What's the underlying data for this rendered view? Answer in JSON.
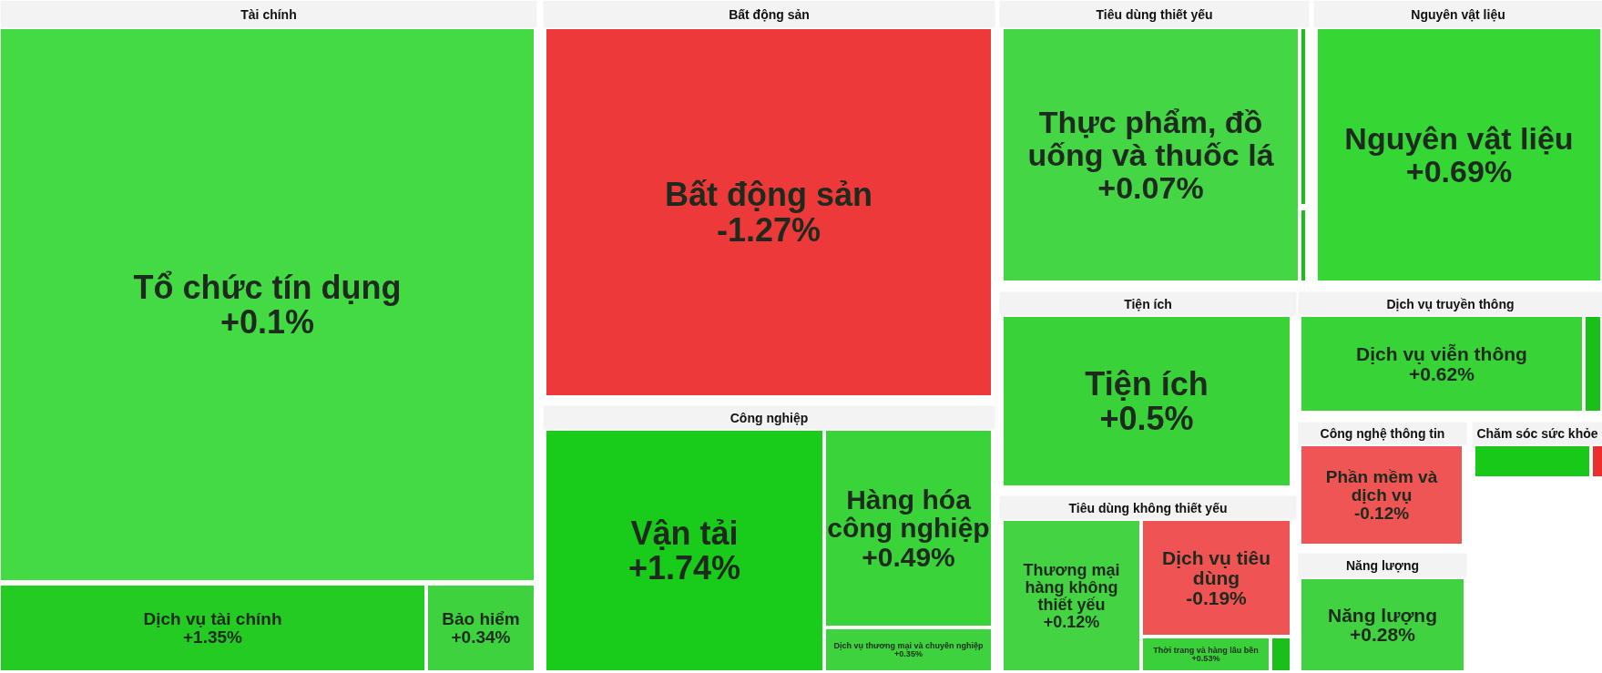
{
  "chart_data": {
    "type": "other",
    "annotations": [
      "Tài chính",
      "Bất động sản",
      "Công nghiệp",
      "Tiêu dùng thiết yếu",
      "Nguyên vật liệu",
      "Tiện ích",
      "Dịch vụ truyền thông",
      "Tiêu dùng không thiết yếu",
      "Công nghệ thông tin",
      "Năng lượng",
      "Chăm sóc sức khỏe"
    ],
    "categories": [
      "Tổ chức tín dụng",
      "Dịch vụ tài chính",
      "Bảo hiểm",
      "Bất động sản",
      "Vận tải",
      "Hàng hóa công nghiệp",
      "Dịch vụ thương mại và chuyên nghiệp",
      "Thực phẩm, đồ uống và thuốc lá",
      null,
      null,
      "Nguyên vật liệu",
      "Tiện ích",
      "Dịch vụ viễn thông",
      null,
      "Thương mại hàng không thiết yếu",
      "Dịch vụ tiêu dùng",
      "Thời trang và hàng lâu bền",
      null,
      "Phần mềm và dịch vụ",
      "Năng lượng",
      null,
      null
    ],
    "values": [
      0.1,
      1.35,
      0.34,
      -1.27,
      1.74,
      0.49,
      0.35,
      0.07,
      null,
      null,
      0.69,
      0.5,
      0.62,
      null,
      0.12,
      -0.19,
      0.53,
      null,
      -0.12,
      0.28,
      null,
      null
    ],
    "value_labels": [
      "+0.1%",
      "+1.35%",
      "+0.34%",
      "-1.27%",
      "+1.74%",
      "+0.49%",
      "+0.35%",
      "+0.07%",
      null,
      null,
      "+0.69%",
      "+0.5%",
      "+0.62%",
      null,
      "+0.12%",
      "-0.19%",
      "+0.53%",
      null,
      "-0.12%",
      "+0.28%",
      null,
      null
    ],
    "colors": [
      "#19d219",
      "#19c919",
      "#19c919",
      "#ec2e2e",
      "#19cc19",
      "#19cc19",
      "#19c919",
      "#19cc19",
      "#19c019",
      "#19c019",
      "#19d219",
      "#19cc19",
      "#19cc19",
      "#19c019",
      "#19c919",
      "#ec2e2e",
      "#19c919",
      "#19c019",
      "#ec2e2e",
      "#19c919",
      "#19c919",
      "#ec2e2e"
    ]
  }
}
